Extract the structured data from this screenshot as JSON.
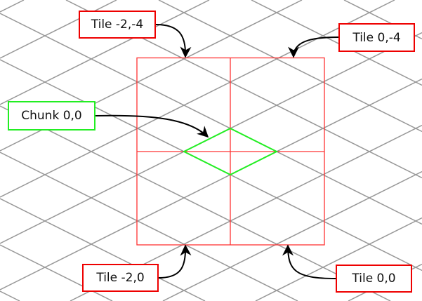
{
  "colors": {
    "grid": "#999999",
    "tile": "#ff2222",
    "chunk": "#22ee22",
    "arrow": "#000000"
  },
  "labels": {
    "tile_m2_m4": "Tile -2,-4",
    "tile_0_m4": "Tile 0,-4",
    "chunk_0_0": "Chunk 0,0",
    "tile_m2_0": "Tile -2,0",
    "tile_0_0": "Tile 0,0"
  }
}
